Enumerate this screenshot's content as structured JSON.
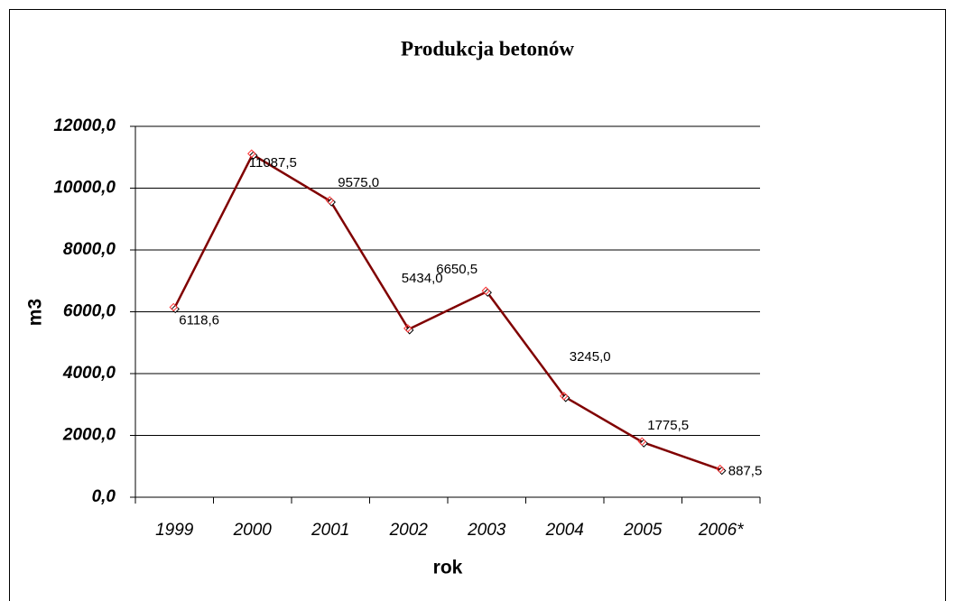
{
  "chart_data": {
    "type": "line",
    "title": "Produkcja betonów",
    "x_label": "rok",
    "y_label": "m3",
    "categories": [
      "1999",
      "2000",
      "2001",
      "2002",
      "2003",
      "2004",
      "2005",
      "2006*"
    ],
    "series": [
      {
        "name": "Produkcja betonów",
        "color": "#800000",
        "values": [
          6118.6,
          11087.5,
          9575.0,
          5434.0,
          6650.5,
          3245.0,
          1775.5,
          887.5
        ],
        "value_labels": [
          "6118,6",
          "11087,5",
          "9575,0",
          "5434,0",
          "6650,5",
          "3245,0",
          "1775,5",
          "887,5"
        ]
      }
    ],
    "ylim": [
      0,
      12000
    ],
    "yticks": [
      {
        "value": 0,
        "label": "0,0"
      },
      {
        "value": 2000,
        "label": "2000,0"
      },
      {
        "value": 4000,
        "label": "4000,0"
      },
      {
        "value": 6000,
        "label": "6000,0"
      },
      {
        "value": 8000,
        "label": "8000,0"
      },
      {
        "value": 10000,
        "label": "10000,0"
      },
      {
        "value": 12000,
        "label": "12000,0"
      }
    ],
    "grid": true
  }
}
